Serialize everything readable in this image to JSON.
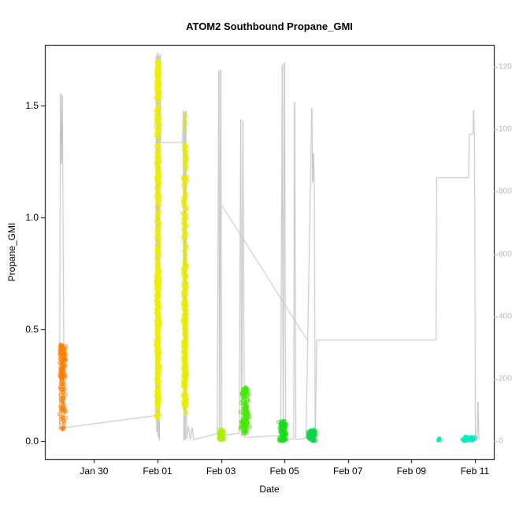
{
  "title": "ATOM2 Southbound Propane_GMI",
  "xlabel": "Date",
  "ylabel": "Propane_GMI",
  "colors": {
    "background": "#FFFFFF",
    "box": "#000000",
    "axis_text": "#000000",
    "line": "#BEBEBE",
    "right_axis_text": "#B8B8B8"
  },
  "chart_data": {
    "type": "scatter",
    "title": "ATOM2 Southbound Propane_GMI",
    "xlabel": "Date",
    "ylabel_left": "Propane_GMI",
    "ylabel_right": "",
    "x_unit": "days since Jan 29",
    "x_domain": [
      -0.55,
      13.6
    ],
    "y_left_domain": [
      -0.081,
      1.771
    ],
    "y_right_domain": [
      -580,
      12710
    ],
    "grid": false,
    "legend": false,
    "x_ticks": [
      {
        "day": 1,
        "label": "Jan 30"
      },
      {
        "day": 3,
        "label": "Feb 01"
      },
      {
        "day": 5,
        "label": "Feb 03"
      },
      {
        "day": 7,
        "label": "Feb 05"
      },
      {
        "day": 9,
        "label": "Feb 07"
      },
      {
        "day": 11,
        "label": "Feb 09"
      },
      {
        "day": 13,
        "label": "Feb 11"
      }
    ],
    "y_left_ticks": [
      {
        "v": 0.0,
        "label": "0.0"
      },
      {
        "v": 0.5,
        "label": "0.5"
      },
      {
        "v": 1.0,
        "label": "1.0"
      },
      {
        "v": 1.5,
        "label": "1.5"
      }
    ],
    "y_right_ticks": [
      {
        "v": 0,
        "label": "0"
      },
      {
        "v": 2000,
        "label": "2000"
      },
      {
        "v": 4000,
        "label": "4000"
      },
      {
        "v": 6000,
        "label": "6000"
      },
      {
        "v": 8000,
        "label": "8000"
      },
      {
        "v": 10000,
        "label": "10000"
      },
      {
        "v": 12000,
        "label": "12000"
      }
    ],
    "line_series": {
      "name": "altitude-trace",
      "axis": "right",
      "color": "#BEBEBE",
      "points": [
        [
          -0.12,
          350
        ],
        [
          -0.09,
          480
        ],
        [
          -0.06,
          11150
        ],
        [
          -0.03,
          8900
        ],
        [
          0.0,
          11100
        ],
        [
          0.06,
          420
        ],
        [
          0.12,
          440
        ],
        [
          2.94,
          820
        ],
        [
          2.96,
          12350
        ],
        [
          2.98,
          300
        ],
        [
          3.0,
          12450
        ],
        [
          3.02,
          120
        ],
        [
          3.04,
          12350
        ],
        [
          3.06,
          40
        ],
        [
          3.08,
          12420
        ],
        [
          3.1,
          9580
        ],
        [
          3.79,
          9580
        ],
        [
          3.81,
          10600
        ],
        [
          3.83,
          20
        ],
        [
          3.85,
          10550
        ],
        [
          3.87,
          40
        ],
        [
          3.89,
          10600
        ],
        [
          3.92,
          80
        ],
        [
          3.98,
          480
        ],
        [
          4.03,
          40
        ],
        [
          4.09,
          430
        ],
        [
          4.14,
          50
        ],
        [
          4.88,
          240
        ],
        [
          4.93,
          11880
        ],
        [
          4.96,
          220
        ],
        [
          4.99,
          11930
        ],
        [
          5.03,
          180
        ],
        [
          5.58,
          250
        ],
        [
          5.62,
          10330
        ],
        [
          5.65,
          150
        ],
        [
          5.69,
          10280
        ],
        [
          5.74,
          120
        ],
        [
          6.88,
          180
        ],
        [
          6.93,
          12080
        ],
        [
          6.96,
          120
        ],
        [
          7.0,
          12140
        ],
        [
          7.04,
          80
        ],
        [
          7.29,
          60
        ],
        [
          7.32,
          10880
        ],
        [
          7.36,
          50
        ],
        [
          7.68,
          90
        ],
        [
          7.86,
          10680
        ],
        [
          7.89,
          8300
        ],
        [
          7.91,
          9240
        ],
        [
          7.94,
          8350
        ],
        [
          7.97,
          50
        ],
        [
          8.02,
          3240
        ],
        [
          11.78,
          3240
        ],
        [
          11.8,
          8450
        ],
        [
          12.8,
          8450
        ],
        [
          12.83,
          9840
        ],
        [
          12.94,
          9840
        ],
        [
          12.96,
          10620
        ],
        [
          12.99,
          9820
        ],
        [
          13.02,
          20
        ],
        [
          13.07,
          30
        ],
        [
          13.1,
          1260
        ],
        [
          13.13,
          40
        ]
      ],
      "extra_segments": [
        [
          [
            5.04,
            7540
          ],
          [
            7.72,
            3240
          ]
        ]
      ]
    },
    "scatter_clusters": [
      {
        "name": "jan29-dense",
        "color": "#FF8000",
        "day": [
          -0.12,
          0.13
        ],
        "value": [
          0.28,
          0.43
        ],
        "count": 110
      },
      {
        "name": "jan29-tail",
        "color": "#FF8000",
        "day": [
          -0.1,
          0.11
        ],
        "value": [
          0.05,
          0.3
        ],
        "count": 70
      },
      {
        "name": "feb01-column",
        "color": "#F0F000",
        "day": [
          2.93,
          3.1
        ],
        "value": [
          0.1,
          1.5
        ],
        "count": 450
      },
      {
        "name": "feb01-low",
        "color": "#F0F000",
        "day": [
          2.94,
          3.09
        ],
        "value": [
          0.15,
          0.8
        ],
        "count": 200
      },
      {
        "name": "feb01-top",
        "color": "#F0F000",
        "day": [
          2.94,
          3.09
        ],
        "value": [
          1.52,
          1.7
        ],
        "count": 120
      },
      {
        "name": "feb02-column",
        "color": "#E8EE00",
        "day": [
          3.78,
          3.95
        ],
        "value": [
          0.12,
          1.33
        ],
        "count": 300
      },
      {
        "name": "feb02-low",
        "color": "#E8EE00",
        "day": [
          3.79,
          3.94
        ],
        "value": [
          0.15,
          0.75
        ],
        "count": 150
      },
      {
        "name": "feb02-outlier",
        "color": "#E8EE00",
        "day": [
          3.83,
          3.9
        ],
        "value": [
          1.38,
          1.46
        ],
        "count": 6
      },
      {
        "name": "feb03-low",
        "color": "#AAF000",
        "day": [
          4.9,
          5.12
        ],
        "value": [
          0.005,
          0.055
        ],
        "count": 70
      },
      {
        "name": "feb03b-blob",
        "color": "#44E800",
        "day": [
          5.6,
          5.92
        ],
        "value": [
          0.03,
          0.24
        ],
        "count": 140
      },
      {
        "name": "feb05-low",
        "color": "#19DB19",
        "day": [
          6.8,
          7.1
        ],
        "value": [
          0.0,
          0.09
        ],
        "count": 110
      },
      {
        "name": "feb05b-low",
        "color": "#0CD648",
        "day": [
          7.72,
          8.02
        ],
        "value": [
          0.0,
          0.05
        ],
        "count": 90
      },
      {
        "name": "feb10-tiny",
        "color": "#00E8A8",
        "day": [
          11.84,
          11.94
        ],
        "value": [
          0.0,
          0.012
        ],
        "count": 7
      },
      {
        "name": "feb11-low",
        "color": "#00E8C0",
        "day": [
          12.55,
          13.03
        ],
        "value": [
          0.0,
          0.02
        ],
        "count": 45
      }
    ]
  }
}
